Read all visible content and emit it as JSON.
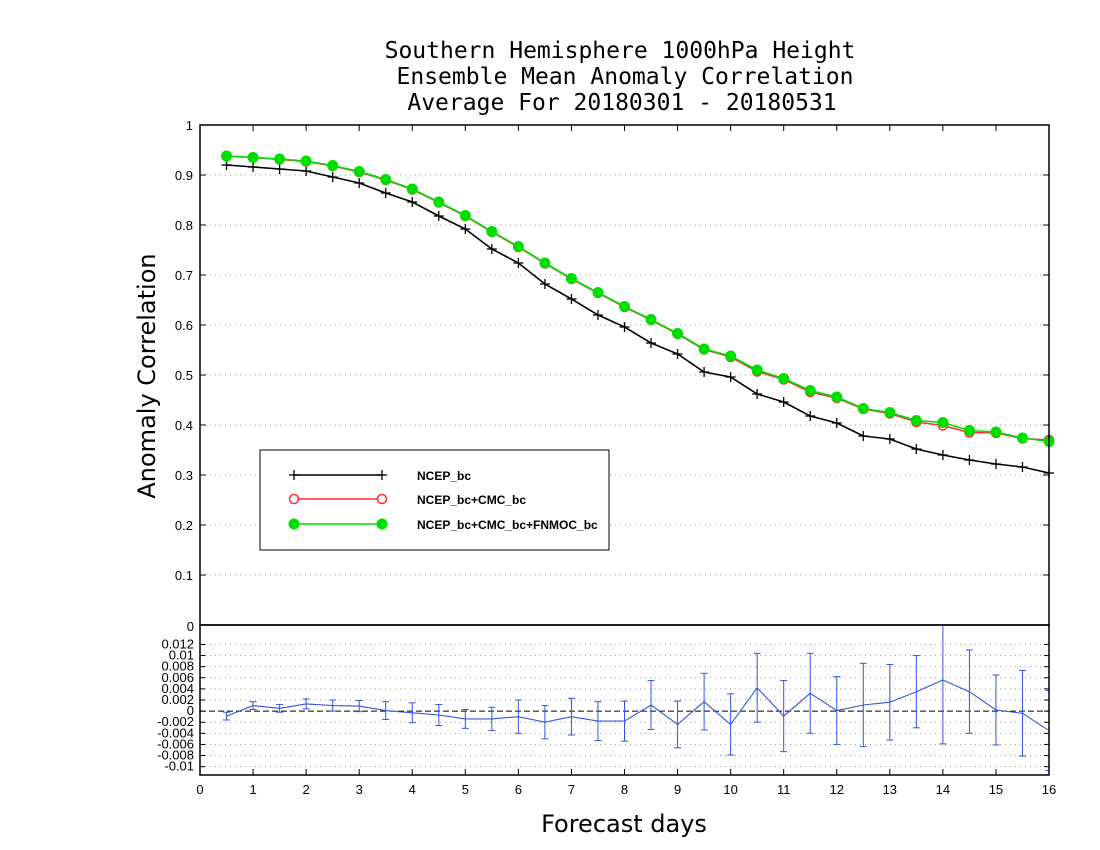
{
  "chart_data": [
    {
      "type": "line",
      "title": [
        "Southern Hemisphere 1000hPa Height",
        "Ensemble Mean Anomaly Correlation",
        "Average For 20180301 - 20180531"
      ],
      "xlabel": "Forecast days",
      "ylabel": "Anomaly Correlation",
      "ylim": [
        0,
        1
      ],
      "xlim": [
        0,
        16
      ],
      "grid": true,
      "legend_position": "bottom-left",
      "y_ticks": [
        "0.1",
        "0.2",
        "0.3",
        "0.4",
        "0.5",
        "0.6",
        "0.7",
        "0.8",
        "0.9",
        "1"
      ],
      "x": [
        0.5,
        1,
        1.5,
        2,
        2.5,
        3,
        3.5,
        4,
        4.5,
        5,
        5.5,
        6,
        6.5,
        7,
        7.5,
        8,
        8.5,
        9,
        9.5,
        10,
        10.5,
        11,
        11.5,
        12,
        12.5,
        13,
        13.5,
        14,
        14.5,
        15,
        15.5,
        16
      ],
      "series": [
        {
          "name": "NCEP_bc",
          "color": "#000000",
          "marker": "plus",
          "values": [
            0.92,
            0.916,
            0.912,
            0.908,
            0.896,
            0.884,
            0.864,
            0.846,
            0.818,
            0.792,
            0.752,
            0.724,
            0.682,
            0.652,
            0.62,
            0.596,
            0.564,
            0.542,
            0.506,
            0.496,
            0.462,
            0.446,
            0.418,
            0.404,
            0.378,
            0.372,
            0.352,
            0.34,
            0.33,
            0.322,
            0.316,
            0.304
          ]
        },
        {
          "name": "NCEP_bc+CMC_bc",
          "color": "#ff3030",
          "marker": "open-circle",
          "values": [
            0.938,
            0.935,
            0.931,
            0.927,
            0.918,
            0.906,
            0.89,
            0.871,
            0.845,
            0.818,
            0.786,
            0.756,
            0.723,
            0.692,
            0.664,
            0.636,
            0.61,
            0.582,
            0.551,
            0.536,
            0.507,
            0.491,
            0.466,
            0.454,
            0.432,
            0.423,
            0.406,
            0.399,
            0.385,
            0.384,
            0.373,
            0.37
          ]
        },
        {
          "name": "NCEP_bc+CMC_bc+FNMOC_bc",
          "color": "#00dd00",
          "marker": "filled-circle",
          "values": [
            0.938,
            0.935,
            0.932,
            0.928,
            0.919,
            0.907,
            0.891,
            0.872,
            0.846,
            0.819,
            0.787,
            0.757,
            0.724,
            0.693,
            0.665,
            0.637,
            0.611,
            0.583,
            0.552,
            0.538,
            0.51,
            0.493,
            0.469,
            0.456,
            0.433,
            0.425,
            0.409,
            0.405,
            0.389,
            0.386,
            0.374,
            0.367
          ]
        }
      ]
    },
    {
      "type": "line",
      "ylim": [
        -0.0115,
        0.0155
      ],
      "xlim": [
        0,
        16
      ],
      "grid": true,
      "y_ticks": [
        "0.012",
        "0.01",
        "0.008",
        "0.006",
        "0.004",
        "0.002",
        "0",
        "-0.002",
        "-0.004",
        "-0.006",
        "-0.008",
        "-0.01"
      ],
      "x_ticks": [
        "0",
        "1",
        "2",
        "3",
        "4",
        "5",
        "6",
        "7",
        "8",
        "9",
        "10",
        "11",
        "12",
        "13",
        "14",
        "15",
        "16"
      ],
      "top_label": "0",
      "series": [
        {
          "color": "#3355dd",
          "x": [
            0.5,
            1,
            1.5,
            2,
            2.5,
            3,
            3.5,
            4,
            4.5,
            5,
            5.5,
            6,
            6.5,
            7,
            7.5,
            8,
            8.5,
            9,
            9.5,
            10,
            10.5,
            11,
            11.5,
            12,
            12.5,
            13,
            13.5,
            14,
            14.5,
            15,
            15.5,
            16
          ],
          "values": [
            -0.0009,
            0.001,
            0.0005,
            0.0013,
            0.001,
            0.0009,
            0.0001,
            -0.0003,
            -0.0007,
            -0.0014,
            -0.0014,
            -0.001,
            -0.002,
            -0.001,
            -0.0018,
            -0.0018,
            0.0011,
            -0.0024,
            0.0017,
            -0.0024,
            0.0042,
            -0.0009,
            0.0032,
            0.0001,
            0.0011,
            0.0016,
            0.0035,
            0.0056,
            0.0035,
            0.0002,
            -0.0004,
            -0.0035
          ],
          "errors": [
            0.0007,
            0.0007,
            0.0007,
            0.0009,
            0.001,
            0.001,
            0.0016,
            0.0018,
            0.0019,
            0.0017,
            0.0021,
            0.003,
            0.003,
            0.0033,
            0.0035,
            0.0036,
            0.0044,
            0.0042,
            0.0051,
            0.0055,
            0.0062,
            0.0064,
            0.0072,
            0.0061,
            0.0075,
            0.0068,
            0.0065,
            0.0115,
            0.0075,
            0.0063,
            0.0077,
            0.0072
          ]
        }
      ]
    }
  ]
}
